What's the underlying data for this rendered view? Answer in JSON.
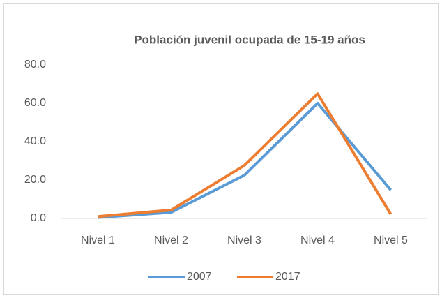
{
  "chart_data": {
    "type": "line",
    "title": "Población juvenil ocupada de 15-19 años",
    "categories": [
      "Nivel 1",
      "Nivel 2",
      "Nivel 3",
      "Nivel 4",
      "Nivel 5"
    ],
    "series": [
      {
        "name": "2007",
        "color": "#5b9bd5",
        "values": [
          0.5,
          3.2,
          22.5,
          60.0,
          14.8
        ]
      },
      {
        "name": "2017",
        "color": "#ed7d31",
        "values": [
          1.0,
          4.4,
          27.6,
          65.0,
          2.2
        ]
      }
    ],
    "ylim": [
      0,
      80
    ],
    "yticks": [
      {
        "value": 0,
        "label": "0.0"
      },
      {
        "value": 20,
        "label": "20.0"
      },
      {
        "value": 40,
        "label": "40.0"
      },
      {
        "value": 60,
        "label": "60.0"
      },
      {
        "value": 80,
        "label": "80.0"
      }
    ],
    "grid": false,
    "legend": "bottom"
  }
}
